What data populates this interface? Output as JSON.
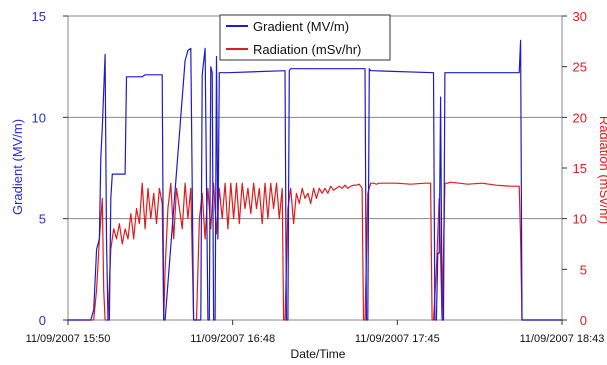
{
  "chart_data": {
    "type": "line",
    "xlabel": "Date/Time",
    "ylabel_left": "Gradient (MV/m)",
    "ylabel_right": "Radiation (mSv/hr)",
    "x_ticks": [
      "11/09/2007 15:50",
      "11/09/2007 16:48",
      "11/09/2007 17:45",
      "11/09/2007 18:43"
    ],
    "xlim": [
      0,
      173
    ],
    "ylim_left": [
      0,
      15
    ],
    "ylim_right": [
      0,
      30
    ],
    "y_ticks_left": [
      "0",
      "5",
      "10",
      "15"
    ],
    "y_ticks_right": [
      "0",
      "5",
      "10",
      "15",
      "20",
      "25",
      "30"
    ],
    "grid": "horizontal",
    "legend_position": "top-center",
    "x_unit_note": "minutes after 11/09/2007 15:50",
    "series": [
      {
        "name": "Gradient (MV/m)",
        "axis": "left",
        "color": "#1c1cc8",
        "x": [
          0,
          8,
          9,
          10,
          11,
          11.5,
          12,
          13,
          13.5,
          14,
          14.5,
          15,
          15.5,
          16,
          16.5,
          17,
          17.5,
          18,
          18.5,
          19,
          19.5,
          20,
          20.5,
          22,
          26,
          27,
          28,
          33,
          33.5,
          34,
          41,
          42,
          43,
          44,
          46.5,
          47,
          48,
          49,
          49.5,
          50,
          50.5,
          51,
          51.5,
          52,
          52.5,
          53,
          53.5,
          54,
          54.5,
          55,
          56,
          76,
          76.5,
          77,
          77.5,
          78,
          78.5,
          104,
          104.5,
          105,
          105.5,
          106,
          106.5,
          128,
          128.5,
          129,
          129.5,
          130,
          130.5,
          131,
          131.5,
          132,
          132.5,
          133,
          158,
          158.5,
          159,
          159.5,
          160,
          160.5,
          161,
          173
        ],
        "y": [
          0,
          0,
          0.5,
          3.5,
          4,
          8,
          9.5,
          13.1,
          4,
          0,
          0,
          6,
          7.2,
          7.2,
          7.2,
          7.2,
          7.2,
          7.2,
          7.2,
          7.2,
          7.2,
          7.2,
          12,
          12,
          12,
          12.1,
          12.1,
          12.1,
          0,
          0,
          12.8,
          13.3,
          13.4,
          0,
          0,
          12.1,
          13.4,
          0,
          0,
          12.5,
          12.2,
          0,
          0,
          13,
          4,
          12.2,
          12.2,
          12.2,
          12.2,
          12.2,
          12.2,
          12.3,
          0,
          0,
          12.3,
          12.4,
          12.4,
          12.4,
          0,
          0,
          12.4,
          12.3,
          12.3,
          12.2,
          0,
          0,
          3.3,
          3.3,
          11,
          0,
          0,
          12.2,
          12.2,
          12.2,
          12.2,
          13.8,
          0,
          0,
          0,
          0,
          0,
          0
        ]
      },
      {
        "name": "Radiation (mSv/hr)",
        "axis": "right",
        "color": "#e01b1b",
        "x": [
          0,
          9,
          10,
          11,
          12,
          12.5,
          13,
          14,
          15,
          16,
          17,
          18,
          19,
          20,
          21,
          22,
          23,
          24,
          25,
          26,
          27,
          28,
          29,
          30,
          31,
          32,
          33,
          33.5,
          34,
          35,
          36,
          37,
          38,
          39,
          40,
          41,
          42,
          43,
          44,
          45,
          46,
          47,
          48,
          49,
          50,
          51,
          52,
          53,
          54,
          55,
          56,
          57,
          58,
          59,
          60,
          61,
          62,
          63,
          64,
          65,
          66,
          67,
          68,
          69,
          70,
          71,
          72,
          73,
          74,
          75,
          75.5,
          76,
          77,
          78,
          79,
          80,
          81,
          82,
          83,
          84,
          85,
          86,
          87,
          88,
          89,
          90,
          91,
          92,
          93,
          94,
          95,
          96,
          97,
          98,
          99,
          100,
          101,
          102,
          103,
          103.5,
          104,
          105,
          106,
          107,
          108,
          109,
          110,
          115,
          120,
          125,
          127,
          127.5,
          128,
          129,
          130,
          131,
          132,
          133,
          134,
          140,
          145,
          150,
          155,
          158,
          158.5,
          159,
          160,
          161,
          173
        ],
        "y": [
          0,
          0,
          3,
          8,
          12,
          3,
          0,
          0,
          7,
          9,
          8,
          9.5,
          7.5,
          9,
          8,
          10.5,
          8,
          11,
          9.5,
          13.5,
          9,
          13,
          10,
          12.5,
          9.5,
          13,
          11.5,
          0,
          5,
          11,
          13.5,
          8,
          13,
          11,
          9,
          13.5,
          10,
          13,
          0,
          0,
          10,
          12.5,
          8,
          13,
          9,
          13.5,
          8.5,
          13,
          10,
          13.5,
          9,
          13.5,
          10,
          13.5,
          9.5,
          13.5,
          11,
          13,
          10.5,
          13.5,
          11,
          13,
          9.5,
          13.5,
          10,
          13.5,
          11,
          13.5,
          10,
          13,
          0,
          0,
          11,
          13,
          9.5,
          12.5,
          11.5,
          13,
          12,
          12.5,
          11.5,
          13,
          12,
          13,
          12.5,
          13,
          12.5,
          13.2,
          12.8,
          13,
          13.2,
          13,
          13.3,
          13,
          13.2,
          13.3,
          13.3,
          13.4,
          13,
          0,
          0,
          12.5,
          13.5,
          13.5,
          13.4,
          13.5,
          13.5,
          13.5,
          13.4,
          13.5,
          13.5,
          0,
          0,
          5,
          12,
          0,
          13.5,
          13.5,
          13.6,
          13.4,
          13.5,
          13.3,
          13.2,
          13.2,
          8,
          0,
          0,
          0,
          0
        ]
      }
    ]
  }
}
